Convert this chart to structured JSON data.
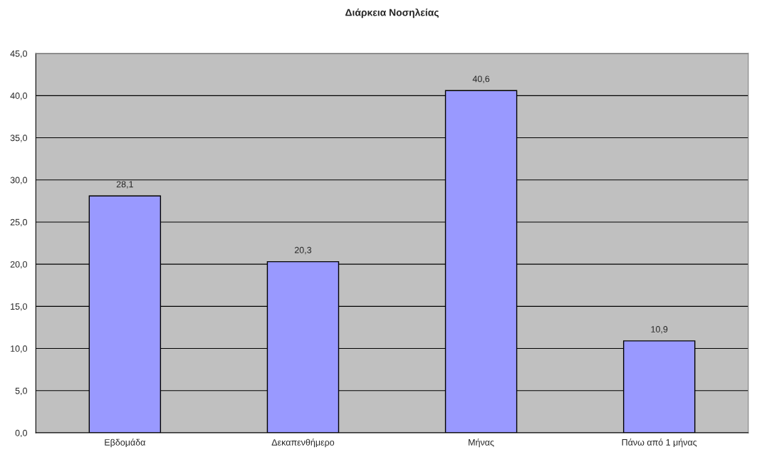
{
  "chart_data": {
    "type": "bar",
    "title": "Διάρκεια Νοσηλείας",
    "categories": [
      "Εβδομάδα",
      "Δεκαπενθήμερο",
      "Μήνας",
      "Πάνω από 1 μήνας"
    ],
    "values": [
      28.1,
      20.3,
      40.6,
      10.9
    ],
    "value_labels": [
      "28,1",
      "20,3",
      "40,6",
      "10,9"
    ],
    "color": "#9999ff",
    "ylim": [
      0,
      45
    ],
    "yticks": [
      {
        "value": 0,
        "label": "0,0"
      },
      {
        "value": 5,
        "label": "5,0"
      },
      {
        "value": 10,
        "label": "10,0"
      },
      {
        "value": 15,
        "label": "15,0"
      },
      {
        "value": 20,
        "label": "20,0"
      },
      {
        "value": 25,
        "label": "25,0"
      },
      {
        "value": 30,
        "label": "30,0"
      },
      {
        "value": 35,
        "label": "35,0"
      },
      {
        "value": 40,
        "label": "40,0"
      },
      {
        "value": 45,
        "label": "45,0"
      }
    ],
    "grid": "y",
    "legend": false
  }
}
